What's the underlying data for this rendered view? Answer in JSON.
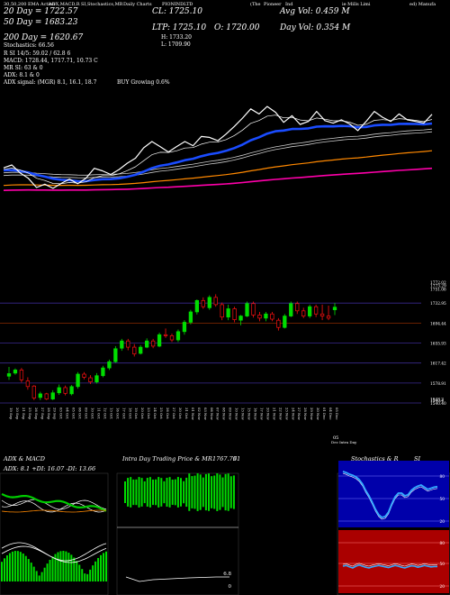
{
  "header": {
    "items": [
      "30,50,200 EMA Action",
      "ADX,MACD,R",
      "SI,Stochastics,MR",
      "Daily Charts",
      "PIONINDLTD",
      "(The",
      "Pioneer",
      "Ind",
      "ie Mills Limi",
      "ed) Manufa"
    ],
    "line20": "20 Day = 1722.57",
    "line50": "50 Day = 1683.23",
    "line200": "200 Day = 1620.67",
    "cl": "CL: 1725.10",
    "ltp": "LTP: 1725.10",
    "o": "O: 1720.00",
    "avgvol": "Avg Vol: 0.459 M",
    "dayvol": "Day Vol: 0.354 M",
    "h": "H: 1733.20",
    "l": "L: 1709.90",
    "stoch": "Stochastics: 66.56",
    "rsi": "R SI 14/5: 59.02 / 62.8 6",
    "macd": "MACD: 1728.44, 1717.71, 10.73 C",
    "mr": "MR SI: 63 & 0",
    "adx": "ADX: 8.1 & 0",
    "adxsig": "ADX signal: (MGR) 8.1, 16.1, 18.7",
    "buy": "BUY Growing 0.6%"
  },
  "price_levels": [
    "1772.02",
    "1773.29",
    "1751.06",
    "1732.95",
    "1694.44",
    "1655.93",
    "1617.42",
    "1578.91",
    "1540.4",
    "1548.3",
    "1540.40"
  ],
  "date_labels": [
    "19 Sep",
    "20 Sep",
    "21 Sep",
    "25 Sep",
    "26 Sep",
    "27 Sep",
    "28 Sep",
    "29 Sep",
    "03 Oct",
    "04 Oct",
    "05 Oct",
    "06 Oct",
    "09 Oct",
    "10 Oct",
    "11 Oct",
    "12 Oct",
    "13 Oct",
    "16 Oct",
    "17 Oct",
    "18 Oct",
    "19 Oct",
    "20 Oct",
    "23 Oct",
    "24 Oct",
    "25 Oct",
    "26 Oct",
    "27 Oct",
    "30 Oct",
    "31 Oct",
    "01 Nov",
    "02 Nov",
    "03 Nov",
    "06 Nov",
    "07 Nov",
    "08 Nov",
    "09 Nov",
    "10 Nov",
    "13 Nov",
    "15 Nov",
    "16 Nov",
    "17 Nov",
    "20 Nov",
    "21 Nov",
    "22 Nov",
    "23 Nov",
    "24 Nov",
    "27 Nov",
    "28 Nov",
    "29 Nov",
    "30 Nov",
    "01 Dec",
    "04 Dec",
    "05 Dec"
  ],
  "footer_note": [
    "05",
    "Dec Intra Day"
  ],
  "panels": {
    "adx_title": "ADX & MACD",
    "adx_values": "ADX: 8.1 +DI: 16.07 -DI: 13.66",
    "intraday_title": "Intra Day Trading Price & MR",
    "intraday_price": "1767.79",
    "intraday_price2": "61",
    "intraday_v1": "6.8",
    "intraday_v2": "0",
    "stoch_title": "Stochastics & R",
    "stoch_title2": "SI",
    "stoch_ticks": [
      "80",
      "50",
      "20"
    ],
    "rsi_ticks": [
      "80",
      "50",
      "20"
    ]
  },
  "chart_data": {
    "type": "candlestick",
    "ylim": [
      1540.4,
      1773.29
    ],
    "candles": [
      {
        "o": 1592,
        "h": 1610,
        "l": 1585,
        "c": 1597
      },
      {
        "o": 1598,
        "h": 1607,
        "l": 1595,
        "c": 1604
      },
      {
        "o": 1604,
        "h": 1608,
        "l": 1580,
        "c": 1585
      },
      {
        "o": 1583,
        "h": 1590,
        "l": 1566,
        "c": 1572
      },
      {
        "o": 1573,
        "h": 1575,
        "l": 1546,
        "c": 1550
      },
      {
        "o": 1551,
        "h": 1562,
        "l": 1546,
        "c": 1558
      },
      {
        "o": 1558,
        "h": 1560,
        "l": 1546,
        "c": 1548
      },
      {
        "o": 1548,
        "h": 1565,
        "l": 1546,
        "c": 1560
      },
      {
        "o": 1560,
        "h": 1576,
        "l": 1556,
        "c": 1570
      },
      {
        "o": 1570,
        "h": 1574,
        "l": 1555,
        "c": 1559
      },
      {
        "o": 1558,
        "h": 1575,
        "l": 1555,
        "c": 1572
      },
      {
        "o": 1572,
        "h": 1600,
        "l": 1568,
        "c": 1596
      },
      {
        "o": 1596,
        "h": 1600,
        "l": 1586,
        "c": 1590
      },
      {
        "o": 1589,
        "h": 1594,
        "l": 1577,
        "c": 1581
      },
      {
        "o": 1581,
        "h": 1598,
        "l": 1578,
        "c": 1593
      },
      {
        "o": 1593,
        "h": 1612,
        "l": 1590,
        "c": 1608
      },
      {
        "o": 1608,
        "h": 1624,
        "l": 1604,
        "c": 1620
      },
      {
        "o": 1620,
        "h": 1650,
        "l": 1618,
        "c": 1645
      },
      {
        "o": 1646,
        "h": 1664,
        "l": 1641,
        "c": 1660
      },
      {
        "o": 1660,
        "h": 1664,
        "l": 1642,
        "c": 1648
      },
      {
        "o": 1648,
        "h": 1654,
        "l": 1630,
        "c": 1635
      },
      {
        "o": 1636,
        "h": 1652,
        "l": 1634,
        "c": 1648
      },
      {
        "o": 1648,
        "h": 1665,
        "l": 1646,
        "c": 1660
      },
      {
        "o": 1660,
        "h": 1664,
        "l": 1646,
        "c": 1650
      },
      {
        "o": 1650,
        "h": 1676,
        "l": 1648,
        "c": 1672
      },
      {
        "o": 1672,
        "h": 1684,
        "l": 1666,
        "c": 1670
      },
      {
        "o": 1670,
        "h": 1674,
        "l": 1658,
        "c": 1662
      },
      {
        "o": 1662,
        "h": 1682,
        "l": 1658,
        "c": 1678
      },
      {
        "o": 1678,
        "h": 1700,
        "l": 1672,
        "c": 1696
      },
      {
        "o": 1696,
        "h": 1720,
        "l": 1692,
        "c": 1716
      },
      {
        "o": 1716,
        "h": 1740,
        "l": 1711,
        "c": 1738
      },
      {
        "o": 1738,
        "h": 1744,
        "l": 1722,
        "c": 1726
      },
      {
        "o": 1724,
        "h": 1748,
        "l": 1720,
        "c": 1744
      },
      {
        "o": 1744,
        "h": 1750,
        "l": 1726,
        "c": 1730
      },
      {
        "o": 1730,
        "h": 1734,
        "l": 1700,
        "c": 1706
      },
      {
        "o": 1706,
        "h": 1730,
        "l": 1700,
        "c": 1722
      },
      {
        "o": 1722,
        "h": 1726,
        "l": 1696,
        "c": 1701
      },
      {
        "o": 1700,
        "h": 1710,
        "l": 1690,
        "c": 1708
      },
      {
        "o": 1708,
        "h": 1736,
        "l": 1706,
        "c": 1732
      },
      {
        "o": 1732,
        "h": 1736,
        "l": 1705,
        "c": 1710
      },
      {
        "o": 1710,
        "h": 1716,
        "l": 1698,
        "c": 1704
      },
      {
        "o": 1704,
        "h": 1716,
        "l": 1698,
        "c": 1712
      },
      {
        "o": 1712,
        "h": 1716,
        "l": 1698,
        "c": 1702
      },
      {
        "o": 1700,
        "h": 1704,
        "l": 1680,
        "c": 1686
      },
      {
        "o": 1686,
        "h": 1712,
        "l": 1684,
        "c": 1708
      },
      {
        "o": 1708,
        "h": 1736,
        "l": 1706,
        "c": 1732
      },
      {
        "o": 1732,
        "h": 1736,
        "l": 1712,
        "c": 1718
      },
      {
        "o": 1718,
        "h": 1724,
        "l": 1704,
        "c": 1708
      },
      {
        "o": 1708,
        "h": 1730,
        "l": 1704,
        "c": 1726
      },
      {
        "o": 1726,
        "h": 1730,
        "l": 1706,
        "c": 1712
      },
      {
        "o": 1712,
        "h": 1730,
        "l": 1700,
        "c": 1708
      },
      {
        "o": 1708,
        "h": 1728,
        "l": 1700,
        "c": 1704
      },
      {
        "o": 1720,
        "h": 1733.2,
        "l": 1709.9,
        "c": 1725.1
      }
    ],
    "colors": {
      "up": "#00dd00",
      "down": "#ff1111",
      "ema20": "#ffffff",
      "ema50": "#1a4cff",
      "ema200": "#ff00aa",
      "ema_orange": "#ff8800",
      "ema_gray": "#cccccc"
    }
  }
}
